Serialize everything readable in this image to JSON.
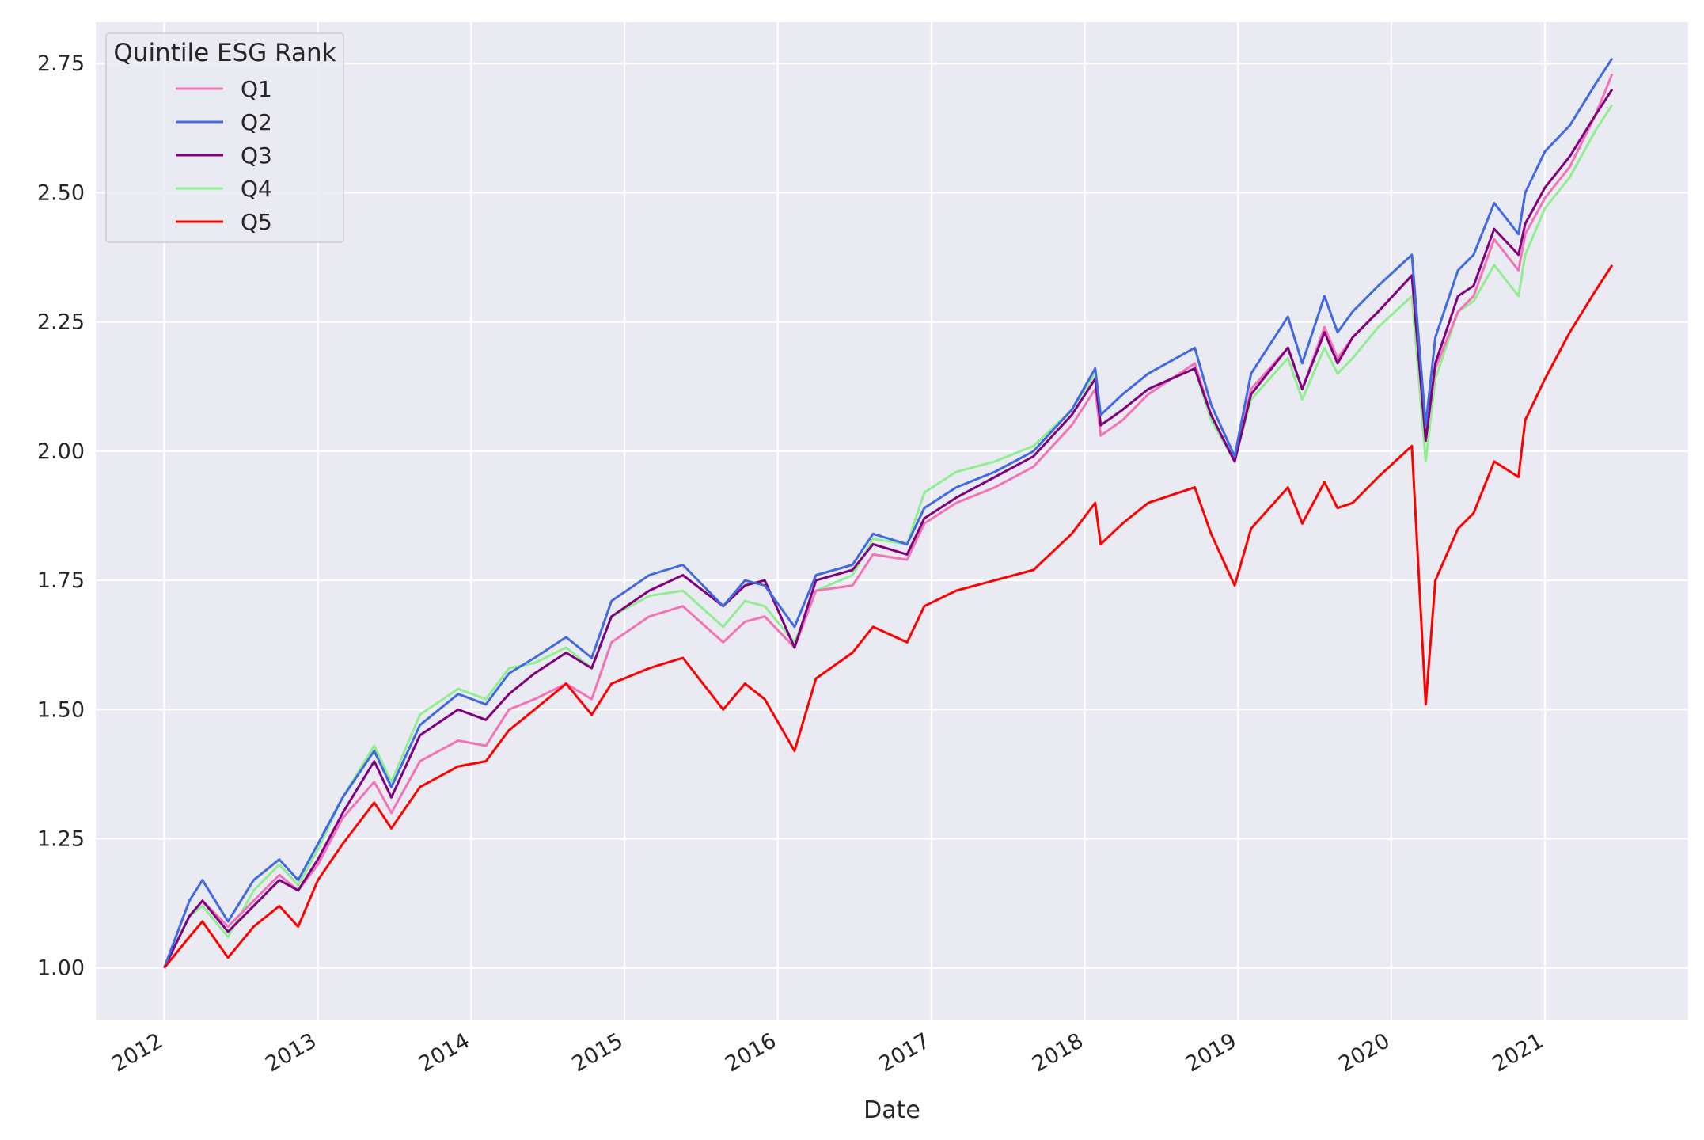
{
  "chart_data": {
    "type": "line",
    "xlabel": "Date",
    "ylabel": "",
    "xlim": [
      "2011-07-22",
      "2021-12-08"
    ],
    "ylim": [
      0.9,
      2.83
    ],
    "x_tick_labels": [
      "2012",
      "2013",
      "2014",
      "2015",
      "2016",
      "2017",
      "2018",
      "2019",
      "2020",
      "2021"
    ],
    "y_ticks": [
      1.0,
      1.25,
      1.5,
      1.75,
      2.0,
      2.25,
      2.5,
      2.75
    ],
    "y_tick_labels": [
      "1.00",
      "1.25",
      "1.50",
      "1.75",
      "2.00",
      "2.25",
      "2.50",
      "2.75"
    ],
    "grid": true,
    "background": "#eaeaf2",
    "legend": {
      "title": "Quintile ESG Rank",
      "placement": "top-left"
    },
    "x": [
      "2012-01-01",
      "2012-03-01",
      "2012-04-01",
      "2012-06-01",
      "2012-08-01",
      "2012-10-01",
      "2012-11-15",
      "2013-01-01",
      "2013-03-01",
      "2013-05-15",
      "2013-06-25",
      "2013-09-01",
      "2013-12-01",
      "2014-02-05",
      "2014-04-01",
      "2014-06-01",
      "2014-08-15",
      "2014-10-15",
      "2014-12-01",
      "2015-03-01",
      "2015-05-20",
      "2015-08-24",
      "2015-10-15",
      "2015-12-01",
      "2016-02-10",
      "2016-04-01",
      "2016-06-27",
      "2016-08-15",
      "2016-11-04",
      "2016-12-15",
      "2017-03-01",
      "2017-06-01",
      "2017-09-01",
      "2017-12-01",
      "2018-01-26",
      "2018-02-08",
      "2018-04-01",
      "2018-06-01",
      "2018-09-20",
      "2018-10-29",
      "2018-12-24",
      "2019-02-01",
      "2019-04-30",
      "2019-06-03",
      "2019-07-26",
      "2019-08-26",
      "2019-10-01",
      "2019-12-01",
      "2020-02-19",
      "2020-03-23",
      "2020-04-15",
      "2020-06-08",
      "2020-07-15",
      "2020-09-02",
      "2020-10-30",
      "2020-11-15",
      "2021-01-01",
      "2021-03-01",
      "2021-05-01",
      "2021-06-10"
    ],
    "series": [
      {
        "name": "Q1",
        "color": "#f472b6",
        "values": [
          1.0,
          1.1,
          1.13,
          1.08,
          1.13,
          1.18,
          1.15,
          1.2,
          1.29,
          1.36,
          1.3,
          1.4,
          1.44,
          1.43,
          1.5,
          1.52,
          1.55,
          1.52,
          1.63,
          1.68,
          1.7,
          1.63,
          1.67,
          1.68,
          1.62,
          1.73,
          1.74,
          1.8,
          1.79,
          1.86,
          1.9,
          1.93,
          1.97,
          2.05,
          2.12,
          2.03,
          2.06,
          2.11,
          2.17,
          2.07,
          1.98,
          2.12,
          2.2,
          2.12,
          2.24,
          2.18,
          2.22,
          2.27,
          2.34,
          2.02,
          2.16,
          2.27,
          2.3,
          2.41,
          2.35,
          2.42,
          2.49,
          2.55,
          2.65,
          2.73
        ]
      },
      {
        "name": "Q2",
        "color": "#4169e1",
        "values": [
          1.0,
          1.13,
          1.17,
          1.09,
          1.17,
          1.21,
          1.17,
          1.24,
          1.33,
          1.42,
          1.35,
          1.47,
          1.53,
          1.51,
          1.57,
          1.6,
          1.64,
          1.6,
          1.71,
          1.76,
          1.78,
          1.7,
          1.75,
          1.74,
          1.66,
          1.76,
          1.78,
          1.84,
          1.82,
          1.89,
          1.93,
          1.96,
          2.0,
          2.08,
          2.16,
          2.07,
          2.11,
          2.15,
          2.2,
          2.09,
          1.99,
          2.15,
          2.26,
          2.17,
          2.3,
          2.23,
          2.27,
          2.32,
          2.38,
          2.05,
          2.22,
          2.35,
          2.38,
          2.48,
          2.42,
          2.5,
          2.58,
          2.63,
          2.71,
          2.76
        ]
      },
      {
        "name": "Q3",
        "color": "#800080",
        "values": [
          1.0,
          1.1,
          1.13,
          1.07,
          1.12,
          1.17,
          1.15,
          1.21,
          1.3,
          1.4,
          1.33,
          1.45,
          1.5,
          1.48,
          1.53,
          1.57,
          1.61,
          1.58,
          1.68,
          1.73,
          1.76,
          1.7,
          1.74,
          1.75,
          1.62,
          1.75,
          1.77,
          1.82,
          1.8,
          1.87,
          1.91,
          1.95,
          1.99,
          2.07,
          2.14,
          2.05,
          2.08,
          2.12,
          2.16,
          2.07,
          1.98,
          2.11,
          2.2,
          2.12,
          2.23,
          2.17,
          2.22,
          2.27,
          2.34,
          2.02,
          2.17,
          2.3,
          2.32,
          2.43,
          2.38,
          2.44,
          2.51,
          2.57,
          2.65,
          2.7
        ]
      },
      {
        "name": "Q4",
        "color": "#90ee90",
        "values": [
          1.0,
          1.1,
          1.12,
          1.06,
          1.15,
          1.2,
          1.16,
          1.23,
          1.33,
          1.43,
          1.36,
          1.49,
          1.54,
          1.52,
          1.58,
          1.59,
          1.62,
          1.58,
          1.68,
          1.72,
          1.73,
          1.66,
          1.71,
          1.7,
          1.63,
          1.73,
          1.76,
          1.83,
          1.82,
          1.92,
          1.96,
          1.98,
          2.01,
          2.08,
          2.15,
          2.05,
          2.08,
          2.12,
          2.16,
          2.06,
          1.98,
          2.1,
          2.18,
          2.1,
          2.2,
          2.15,
          2.18,
          2.24,
          2.3,
          1.98,
          2.14,
          2.27,
          2.29,
          2.36,
          2.3,
          2.38,
          2.47,
          2.53,
          2.62,
          2.67
        ]
      },
      {
        "name": "Q5",
        "color": "#ff0000",
        "values": [
          1.0,
          1.06,
          1.09,
          1.02,
          1.08,
          1.12,
          1.08,
          1.17,
          1.24,
          1.32,
          1.27,
          1.35,
          1.39,
          1.4,
          1.46,
          1.5,
          1.55,
          1.49,
          1.55,
          1.58,
          1.6,
          1.5,
          1.55,
          1.52,
          1.42,
          1.56,
          1.61,
          1.66,
          1.63,
          1.7,
          1.73,
          1.75,
          1.77,
          1.84,
          1.9,
          1.82,
          1.86,
          1.9,
          1.93,
          1.84,
          1.74,
          1.85,
          1.93,
          1.86,
          1.94,
          1.89,
          1.9,
          1.95,
          2.01,
          1.51,
          1.75,
          1.85,
          1.88,
          1.98,
          1.95,
          2.06,
          2.14,
          2.23,
          2.31,
          2.36
        ]
      }
    ]
  }
}
